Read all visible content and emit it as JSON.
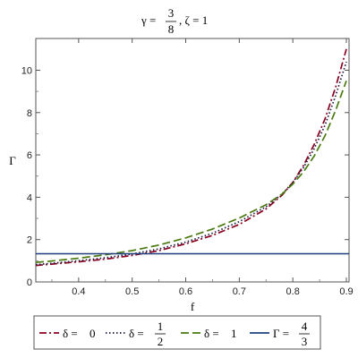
{
  "chart_data": {
    "type": "line",
    "title": {
      "gamma_label": "γ =",
      "gamma_num": "3",
      "gamma_den": "8",
      "rest": ", ζ = 1"
    },
    "xlabel": "f",
    "ylabel": "Γ",
    "xlim": [
      0.32,
      0.905
    ],
    "ylim": [
      0,
      11.5
    ],
    "xticks": [
      0.4,
      0.5,
      0.6,
      0.7,
      0.8,
      0.9
    ],
    "xtick_labels": [
      "0.4",
      "0.5",
      "0.6",
      "0.7",
      "0.8",
      "0.9"
    ],
    "yticks": [
      0,
      2,
      4,
      6,
      8,
      10
    ],
    "ytick_labels": [
      "0",
      "2",
      "4",
      "6",
      "8",
      "10"
    ],
    "grid": false,
    "legend_position": "bottom",
    "series": [
      {
        "name": "δ = 0",
        "legend_prefix": "δ = ",
        "legend_value": "0",
        "color": "#8b0020",
        "dash": "8,3,2,3",
        "x": [
          0.32,
          0.35,
          0.4,
          0.45,
          0.5,
          0.55,
          0.6,
          0.65,
          0.7,
          0.75,
          0.78,
          0.8,
          0.82,
          0.84,
          0.86,
          0.88,
          0.9
        ],
        "y": [
          0.78,
          0.84,
          0.95,
          1.08,
          1.25,
          1.48,
          1.8,
          2.2,
          2.72,
          3.45,
          4.1,
          4.7,
          5.5,
          6.5,
          7.7,
          9.2,
          11.0
        ]
      },
      {
        "name": "δ = 1/2",
        "legend_prefix": "δ = ",
        "legend_num": "1",
        "legend_den": "2",
        "color": "#1a1a40",
        "dash": "1.5,2.5",
        "x": [
          0.32,
          0.35,
          0.4,
          0.45,
          0.5,
          0.55,
          0.6,
          0.65,
          0.7,
          0.75,
          0.78,
          0.8,
          0.82,
          0.84,
          0.86,
          0.88,
          0.9
        ],
        "y": [
          0.82,
          0.88,
          1.0,
          1.14,
          1.32,
          1.56,
          1.88,
          2.3,
          2.85,
          3.55,
          4.15,
          4.7,
          5.4,
          6.3,
          7.4,
          8.8,
          10.4
        ]
      },
      {
        "name": "δ = 1",
        "legend_prefix": "δ = ",
        "legend_value": "1",
        "color": "#4a7a10",
        "dash": "9,4",
        "x": [
          0.32,
          0.35,
          0.4,
          0.45,
          0.5,
          0.55,
          0.6,
          0.65,
          0.7,
          0.75,
          0.78,
          0.8,
          0.82,
          0.84,
          0.86,
          0.88,
          0.9
        ],
        "y": [
          0.92,
          0.99,
          1.12,
          1.28,
          1.48,
          1.74,
          2.08,
          2.5,
          3.02,
          3.65,
          4.15,
          4.62,
          5.2,
          5.95,
          6.9,
          8.1,
          9.5
        ]
      },
      {
        "name": "Γ = 4/3",
        "legend_prefix": "Γ = ",
        "legend_num": "4",
        "legend_den": "3",
        "color": "#1f3f7f",
        "dash": "",
        "x": [
          0.32,
          0.905
        ],
        "y": [
          1.3333,
          1.3333
        ]
      }
    ]
  }
}
